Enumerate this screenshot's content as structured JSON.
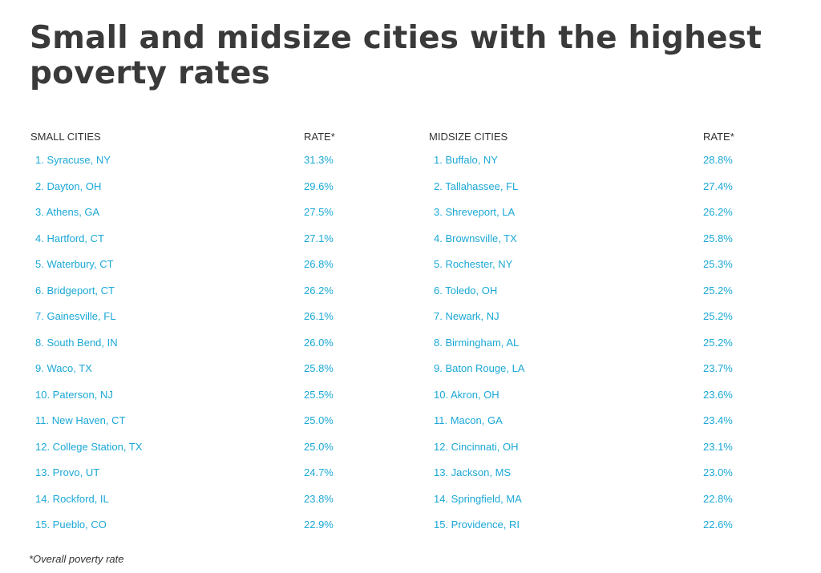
{
  "title": "Small and midsize cities with the highest poverty rates",
  "small": {
    "header_name": "SMALL CITIES",
    "header_rate": "RATE*",
    "rows": [
      {
        "city": "1. Syracuse, NY",
        "rate": "31.3%"
      },
      {
        "city": "2. Dayton, OH",
        "rate": "29.6%"
      },
      {
        "city": "3. Athens, GA",
        "rate": "27.5%"
      },
      {
        "city": "4. Hartford, CT",
        "rate": "27.1%"
      },
      {
        "city": "5. Waterbury, CT",
        "rate": "26.8%"
      },
      {
        "city": "6. Bridgeport, CT",
        "rate": "26.2%"
      },
      {
        "city": "7. Gainesville, FL",
        "rate": "26.1%"
      },
      {
        "city": "8. South Bend, IN",
        "rate": "26.0%"
      },
      {
        "city": "9. Waco, TX",
        "rate": "25.8%"
      },
      {
        "city": "10. Paterson, NJ",
        "rate": "25.5%"
      },
      {
        "city": "11. New Haven, CT",
        "rate": "25.0%"
      },
      {
        "city": "12. College Station, TX",
        "rate": "25.0%"
      },
      {
        "city": "13. Provo, UT",
        "rate": "24.7%"
      },
      {
        "city": "14. Rockford, IL",
        "rate": "23.8%"
      },
      {
        "city": "15. Pueblo, CO",
        "rate": "22.9%"
      }
    ]
  },
  "midsize": {
    "header_name": "MIDSIZE CITIES",
    "header_rate": "RATE*",
    "rows": [
      {
        "city": "1. Buffalo, NY",
        "rate": "28.8%"
      },
      {
        "city": "2. Tallahassee, FL",
        "rate": "27.4%"
      },
      {
        "city": "3. Shreveport, LA",
        "rate": "26.2%"
      },
      {
        "city": "4. Brownsville, TX",
        "rate": "25.8%"
      },
      {
        "city": "5. Rochester, NY",
        "rate": "25.3%"
      },
      {
        "city": "6. Toledo, OH",
        "rate": "25.2%"
      },
      {
        "city": "7. Newark, NJ",
        "rate": "25.2%"
      },
      {
        "city": "8. Birmingham, AL",
        "rate": "25.2%"
      },
      {
        "city": "9. Baton Rouge, LA",
        "rate": "23.7%"
      },
      {
        "city": "10. Akron, OH",
        "rate": "23.6%"
      },
      {
        "city": "11. Macon, GA",
        "rate": "23.4%"
      },
      {
        "city": "12. Cincinnati, OH",
        "rate": "23.1%"
      },
      {
        "city": "13. Jackson, MS",
        "rate": "23.0%"
      },
      {
        "city": "14. Springfield, MA",
        "rate": "22.8%"
      },
      {
        "city": "15. Providence, RI",
        "rate": "22.6%"
      }
    ]
  },
  "footnote": "*Overall poverty rate",
  "colors": {
    "title": "#3a3a3a",
    "header": "#333333",
    "row_text": "#1ba8d6"
  }
}
